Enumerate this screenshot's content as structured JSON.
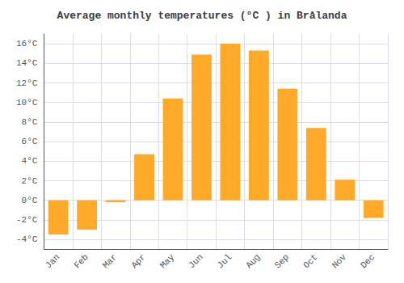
{
  "chart_data": {
    "type": "bar",
    "title": "Average monthly temperatures (°C ) in Brålanda",
    "categories": [
      "Jan",
      "Feb",
      "Mar",
      "Apr",
      "May",
      "Jun",
      "Jul",
      "Aug",
      "Sep",
      "Oct",
      "Nov",
      "Dec"
    ],
    "values": [
      -3.5,
      -3.0,
      -0.2,
      4.7,
      10.4,
      14.9,
      16.0,
      15.3,
      11.4,
      7.4,
      2.1,
      -1.8
    ],
    "color": "#FFA928",
    "ylim": [
      -5,
      17
    ],
    "yticks": [
      {
        "value": -4,
        "label": "-4°C"
      },
      {
        "value": -2,
        "label": "-2°C"
      },
      {
        "value": 0,
        "label": "0°C"
      },
      {
        "value": 2,
        "label": "2°C"
      },
      {
        "value": 4,
        "label": "4°C"
      },
      {
        "value": 6,
        "label": "6°C"
      },
      {
        "value": 8,
        "label": "8°C"
      },
      {
        "value": 10,
        "label": "10°C"
      },
      {
        "value": 12,
        "label": "12°C"
      },
      {
        "value": 14,
        "label": "14°C"
      },
      {
        "value": 16,
        "label": "16°C"
      }
    ],
    "grid": true
  }
}
